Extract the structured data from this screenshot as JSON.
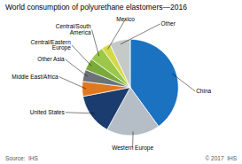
{
  "chart_data": {
    "type": "pie",
    "title": "World consumption of polyurethane elastomers—2016",
    "categories": [
      "China",
      "Western Europe",
      "United States",
      "Middle East/Africa",
      "Other Asia",
      "Central/Eastern\nEurope",
      "Central/South\nAmerica",
      "Mexico",
      "Other"
    ],
    "values": [
      40,
      18,
      14,
      5,
      4,
      4,
      5,
      3,
      7
    ],
    "colors": [
      "#1a72c0",
      "#b5bec6",
      "#1a3c6e",
      "#e07820",
      "#6d7278",
      "#7aaa3a",
      "#9bc84a",
      "#d4d94a",
      "#c5cac8"
    ],
    "annotations": [
      "Source:  IHS",
      "© 2017  IHS"
    ]
  }
}
